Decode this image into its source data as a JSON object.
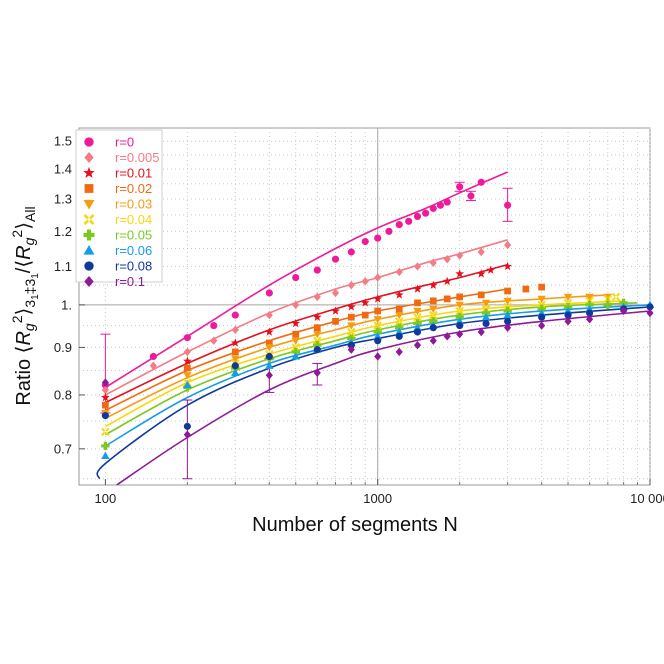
{
  "chart_data": {
    "type": "scatter",
    "xlabel": "Number of segments N",
    "ylabel_parts": {
      "prefix": "Ratio ⟨",
      "r1": "R",
      "g1": "g",
      "s1": "2",
      "mid": "⟩",
      "sub1": "3",
      "sub1b": "1",
      "sub_sep": "‡3",
      "sub2": "1",
      "slash": "/⟨",
      "r2": "R",
      "g2": "g",
      "s2": "2",
      "end": "⟩",
      "all": "All"
    },
    "x_scale": "log",
    "y_scale": "log",
    "xlim": [
      80,
      10000
    ],
    "ylim": [
      0.64,
      1.55
    ],
    "x_ticks": [
      100,
      1000,
      10000
    ],
    "x_tick_labels": [
      "100",
      "1000",
      "10 000"
    ],
    "y_ticks": [
      0.7,
      0.8,
      0.9,
      1.0,
      1.1,
      1.2,
      1.3,
      1.4,
      1.5
    ],
    "y_tick_labels": [
      "0.7",
      "0.8",
      "0.9",
      "1.",
      "1.1",
      "1.2",
      "1.3",
      "1.4",
      "1.5"
    ],
    "reference_lines": {
      "x": 1000,
      "y": 1.0
    },
    "grid": "dotted",
    "legend_position": "top-left",
    "series": [
      {
        "name": "r=0",
        "color": "#ee1a9a",
        "marker": "circle",
        "points": [
          [
            100,
            0.82
          ],
          [
            150,
            0.88
          ],
          [
            200,
            0.922
          ],
          [
            250,
            0.95
          ],
          [
            300,
            0.975
          ],
          [
            400,
            1.03
          ],
          [
            500,
            1.07
          ],
          [
            600,
            1.09
          ],
          [
            700,
            1.12
          ],
          [
            800,
            1.14
          ],
          [
            900,
            1.17
          ],
          [
            1000,
            1.18
          ],
          [
            1100,
            1.2
          ],
          [
            1200,
            1.22
          ],
          [
            1300,
            1.23
          ],
          [
            1400,
            1.245
          ],
          [
            1500,
            1.255
          ],
          [
            1600,
            1.27
          ],
          [
            1700,
            1.28
          ],
          [
            1800,
            1.29
          ],
          [
            2000,
            1.34
          ],
          [
            2200,
            1.31
          ],
          [
            2400,
            1.355
          ],
          [
            3000,
            1.28
          ]
        ],
        "fit": [
          [
            100,
            0.815
          ],
          [
            200,
            0.925
          ],
          [
            400,
            1.05
          ],
          [
            700,
            1.15
          ],
          [
            1000,
            1.21
          ],
          [
            1500,
            1.27
          ],
          [
            2000,
            1.32
          ],
          [
            3000,
            1.39
          ]
        ]
      },
      {
        "name": "r=0.005",
        "color": "#f47c86",
        "marker": "diamond",
        "points": [
          [
            100,
            0.81
          ],
          [
            150,
            0.86
          ],
          [
            200,
            0.89
          ],
          [
            250,
            0.915
          ],
          [
            300,
            0.94
          ],
          [
            400,
            0.975
          ],
          [
            500,
            1.0
          ],
          [
            600,
            1.02
          ],
          [
            700,
            1.03
          ],
          [
            800,
            1.05
          ],
          [
            900,
            1.06
          ],
          [
            1000,
            1.07
          ],
          [
            1200,
            1.085
          ],
          [
            1400,
            1.1
          ],
          [
            1600,
            1.11
          ],
          [
            1800,
            1.12
          ],
          [
            2000,
            1.13
          ],
          [
            2400,
            1.14
          ],
          [
            3000,
            1.16
          ]
        ],
        "fit": [
          [
            100,
            0.8
          ],
          [
            200,
            0.89
          ],
          [
            400,
            0.98
          ],
          [
            700,
            1.04
          ],
          [
            1000,
            1.07
          ],
          [
            1500,
            1.11
          ],
          [
            2000,
            1.135
          ],
          [
            3000,
            1.175
          ]
        ]
      },
      {
        "name": "r=0.01",
        "color": "#e3101e",
        "marker": "star",
        "points": [
          [
            100,
            0.795
          ],
          [
            200,
            0.87
          ],
          [
            300,
            0.91
          ],
          [
            400,
            0.935
          ],
          [
            500,
            0.955
          ],
          [
            600,
            0.97
          ],
          [
            700,
            0.985
          ],
          [
            800,
            0.995
          ],
          [
            900,
            1.005
          ],
          [
            1000,
            1.015
          ],
          [
            1200,
            1.025
          ],
          [
            1400,
            1.04
          ],
          [
            1600,
            1.05
          ],
          [
            1800,
            1.06
          ],
          [
            2000,
            1.08
          ],
          [
            2400,
            1.08
          ],
          [
            2600,
            1.09
          ],
          [
            3000,
            1.1
          ]
        ],
        "fit": [
          [
            100,
            0.785
          ],
          [
            200,
            0.865
          ],
          [
            400,
            0.94
          ],
          [
            700,
            0.99
          ],
          [
            1000,
            1.02
          ],
          [
            1500,
            1.05
          ],
          [
            2000,
            1.07
          ],
          [
            3000,
            1.105
          ]
        ]
      },
      {
        "name": "r=0.02",
        "color": "#f26a10",
        "marker": "square",
        "points": [
          [
            100,
            0.78
          ],
          [
            200,
            0.855
          ],
          [
            300,
            0.89
          ],
          [
            400,
            0.91
          ],
          [
            500,
            0.93
          ],
          [
            600,
            0.945
          ],
          [
            700,
            0.96
          ],
          [
            800,
            0.97
          ],
          [
            900,
            0.975
          ],
          [
            1000,
            0.985
          ],
          [
            1200,
            0.99
          ],
          [
            1400,
            1.005
          ],
          [
            1600,
            1.01
          ],
          [
            1800,
            1.015
          ],
          [
            2000,
            1.02
          ],
          [
            2400,
            1.025
          ],
          [
            3000,
            1.035
          ],
          [
            3500,
            1.04
          ],
          [
            4000,
            1.045
          ]
        ],
        "fit": [
          [
            100,
            0.77
          ],
          [
            200,
            0.85
          ],
          [
            400,
            0.915
          ],
          [
            700,
            0.96
          ],
          [
            1000,
            0.985
          ],
          [
            2000,
            1.02
          ],
          [
            3000,
            1.04
          ]
        ]
      },
      {
        "name": "r=0.03",
        "color": "#f59c12",
        "marker": "triangle-down",
        "points": [
          [
            100,
            0.765
          ],
          [
            200,
            0.84
          ],
          [
            300,
            0.875
          ],
          [
            400,
            0.9
          ],
          [
            500,
            0.915
          ],
          [
            600,
            0.93
          ],
          [
            800,
            0.95
          ],
          [
            1000,
            0.965
          ],
          [
            1200,
            0.975
          ],
          [
            1400,
            0.985
          ],
          [
            1600,
            0.99
          ],
          [
            2000,
            1.0
          ],
          [
            2500,
            1.005
          ],
          [
            3000,
            1.01
          ],
          [
            4000,
            1.015
          ],
          [
            5000,
            1.02
          ],
          [
            6000,
            1.02
          ],
          [
            7000,
            1.02
          ]
        ],
        "fit": [
          [
            100,
            0.755
          ],
          [
            200,
            0.835
          ],
          [
            400,
            0.9
          ],
          [
            700,
            0.94
          ],
          [
            1000,
            0.965
          ],
          [
            2000,
            1.0
          ],
          [
            4000,
            1.015
          ],
          [
            7000,
            1.025
          ]
        ]
      },
      {
        "name": "r=0.04",
        "color": "#f5d80e",
        "marker": "cross",
        "points": [
          [
            100,
            0.73
          ],
          [
            200,
            0.825
          ],
          [
            300,
            0.865
          ],
          [
            400,
            0.885
          ],
          [
            500,
            0.9
          ],
          [
            600,
            0.915
          ],
          [
            800,
            0.935
          ],
          [
            1000,
            0.95
          ],
          [
            1200,
            0.96
          ],
          [
            1400,
            0.97
          ],
          [
            1600,
            0.975
          ],
          [
            2000,
            0.985
          ],
          [
            2500,
            0.99
          ],
          [
            3000,
            0.995
          ],
          [
            4000,
            1.0
          ],
          [
            5000,
            1.005
          ],
          [
            6000,
            1.01
          ],
          [
            7000,
            1.015
          ],
          [
            7500,
            1.02
          ]
        ],
        "fit": [
          [
            100,
            0.74
          ],
          [
            200,
            0.825
          ],
          [
            400,
            0.885
          ],
          [
            700,
            0.925
          ],
          [
            1000,
            0.95
          ],
          [
            2000,
            0.985
          ],
          [
            4000,
            1.0
          ],
          [
            8000,
            1.01
          ]
        ]
      },
      {
        "name": "r=0.05",
        "color": "#7dc81e",
        "marker": "plus",
        "points": [
          [
            100,
            0.705
          ],
          [
            200,
            0.815
          ],
          [
            300,
            0.855
          ],
          [
            400,
            0.875
          ],
          [
            500,
            0.89
          ],
          [
            600,
            0.905
          ],
          [
            800,
            0.92
          ],
          [
            1000,
            0.935
          ],
          [
            1200,
            0.945
          ],
          [
            1400,
            0.955
          ],
          [
            1600,
            0.96
          ],
          [
            2000,
            0.97
          ],
          [
            2500,
            0.98
          ],
          [
            3000,
            0.985
          ],
          [
            4000,
            0.99
          ],
          [
            5000,
            0.995
          ],
          [
            6000,
            1.0
          ],
          [
            7000,
            1.0
          ],
          [
            8000,
            1.005
          ]
        ],
        "fit": [
          [
            100,
            0.725
          ],
          [
            200,
            0.81
          ],
          [
            400,
            0.875
          ],
          [
            700,
            0.915
          ],
          [
            1000,
            0.94
          ],
          [
            2000,
            0.975
          ],
          [
            4000,
            0.995
          ],
          [
            9000,
            1.005
          ]
        ]
      },
      {
        "name": "r=0.06",
        "color": "#159de8",
        "marker": "triangle-up",
        "points": [
          [
            100,
            0.688
          ],
          [
            200,
            0.82
          ],
          [
            300,
            0.845
          ],
          [
            400,
            0.86
          ],
          [
            500,
            0.88
          ],
          [
            600,
            0.895
          ],
          [
            800,
            0.91
          ],
          [
            1000,
            0.925
          ],
          [
            1200,
            0.935
          ],
          [
            1400,
            0.945
          ],
          [
            1600,
            0.95
          ],
          [
            2000,
            0.96
          ],
          [
            2500,
            0.97
          ],
          [
            3000,
            0.975
          ],
          [
            4000,
            0.98
          ],
          [
            5000,
            0.985
          ],
          [
            6000,
            0.99
          ],
          [
            8000,
            0.995
          ],
          [
            10000,
            1.0
          ]
        ],
        "fit": [
          [
            100,
            0.705
          ],
          [
            200,
            0.795
          ],
          [
            400,
            0.865
          ],
          [
            700,
            0.905
          ],
          [
            1000,
            0.93
          ],
          [
            2000,
            0.965
          ],
          [
            4000,
            0.985
          ],
          [
            10000,
            1.0
          ]
        ]
      },
      {
        "name": "r=0.08",
        "color": "#11399b",
        "marker": "circle",
        "points": [
          [
            100,
            0.76
          ],
          [
            200,
            0.74
          ],
          [
            300,
            0.86
          ],
          [
            400,
            0.88
          ],
          [
            600,
            0.895
          ],
          [
            800,
            0.905
          ],
          [
            1000,
            0.915
          ],
          [
            1200,
            0.925
          ],
          [
            1400,
            0.935
          ],
          [
            1600,
            0.945
          ],
          [
            2000,
            0.95
          ],
          [
            2500,
            0.955
          ],
          [
            3000,
            0.96
          ],
          [
            4000,
            0.97
          ],
          [
            5000,
            0.975
          ],
          [
            6000,
            0.98
          ],
          [
            8000,
            0.99
          ],
          [
            10000,
            0.995
          ]
        ],
        "fit": [
          [
            95,
            0.65
          ],
          [
            100,
            0.675
          ],
          [
            200,
            0.78
          ],
          [
            400,
            0.855
          ],
          [
            700,
            0.9
          ],
          [
            1000,
            0.92
          ],
          [
            2000,
            0.955
          ],
          [
            4000,
            0.975
          ],
          [
            10000,
            0.995
          ]
        ]
      },
      {
        "name": "r=0.1",
        "color": "#8e1a98",
        "marker": "diamond",
        "points": [
          [
            100,
            0.825
          ],
          [
            200,
            0.725
          ],
          [
            400,
            0.84
          ],
          [
            600,
            0.845
          ],
          [
            800,
            0.895
          ],
          [
            1000,
            0.88
          ],
          [
            1200,
            0.89
          ],
          [
            1400,
            0.905
          ],
          [
            1600,
            0.915
          ],
          [
            1800,
            0.925
          ],
          [
            2000,
            0.93
          ],
          [
            2400,
            0.935
          ],
          [
            3000,
            0.945
          ],
          [
            4000,
            0.95
          ],
          [
            5000,
            0.96
          ],
          [
            6000,
            0.965
          ],
          [
            8000,
            0.985
          ],
          [
            10000,
            0.98
          ]
        ],
        "fit": [
          [
            110,
            0.64
          ],
          [
            200,
            0.72
          ],
          [
            400,
            0.81
          ],
          [
            700,
            0.865
          ],
          [
            1000,
            0.895
          ],
          [
            2000,
            0.935
          ],
          [
            4000,
            0.96
          ],
          [
            10000,
            0.985
          ]
        ]
      }
    ],
    "error_bars": [
      {
        "series": 0,
        "x": 100,
        "lo": 0.765,
        "hi": 0.93
      },
      {
        "series": 9,
        "x": 200,
        "lo": 0.65,
        "hi": 0.79
      },
      {
        "series": 9,
        "x": 400,
        "lo": 0.805,
        "hi": 0.875
      },
      {
        "series": 9,
        "x": 600,
        "lo": 0.82,
        "hi": 0.865
      },
      {
        "series": 0,
        "x": 3000,
        "lo": 1.23,
        "hi": 1.335
      },
      {
        "series": 0,
        "x": 2000,
        "lo": 1.325,
        "hi": 1.355
      },
      {
        "series": 0,
        "x": 2200,
        "lo": 1.295,
        "hi": 1.325
      }
    ]
  }
}
